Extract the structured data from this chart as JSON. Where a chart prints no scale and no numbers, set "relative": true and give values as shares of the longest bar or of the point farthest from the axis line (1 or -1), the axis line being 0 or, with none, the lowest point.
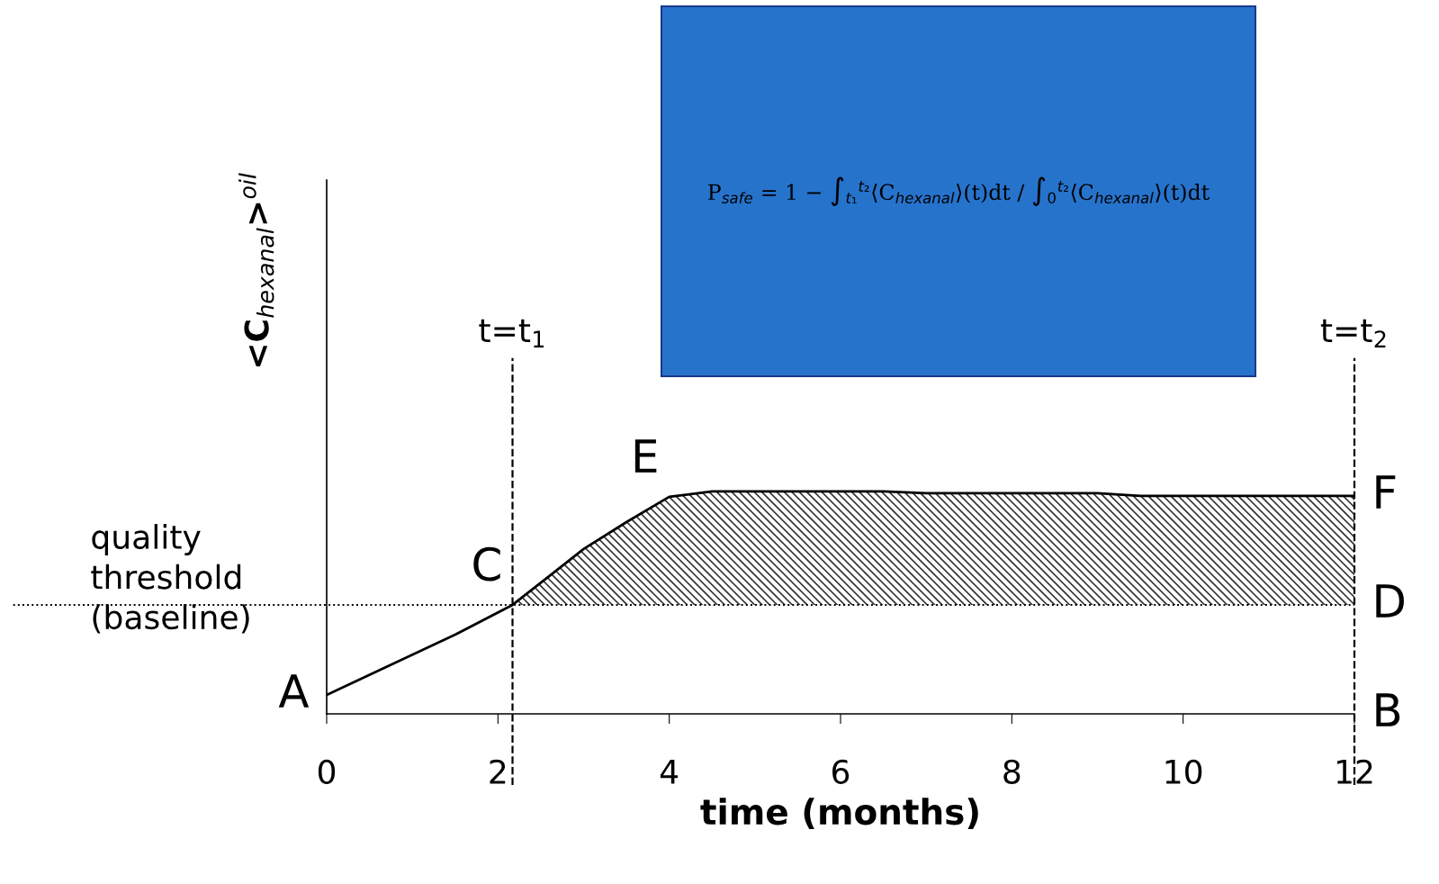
{
  "chart_data": {
    "type": "line",
    "relative": true,
    "xlabel": "time (months)",
    "ylabel": "<C$_{hexanal}$>$^{oil}$",
    "xlim": [
      0,
      12
    ],
    "xticks": [
      0,
      2,
      4,
      6,
      8,
      10,
      12
    ],
    "grid": false,
    "marker": "none",
    "line_style": "solid",
    "series": [
      {
        "color": "#000000",
        "x": [
          0,
          0.8,
          1.5,
          2.17,
          2.6,
          3.0,
          3.5,
          4.0,
          4.5,
          6.5,
          7.0,
          9.0,
          9.5,
          12
        ],
        "values": [
          0.085,
          0.23,
          0.356,
          0.49,
          0.62,
          0.741,
          0.862,
          0.976,
          1,
          1,
          0.992,
          0.992,
          0.98,
          0.98
        ],
        "lower": [
          null,
          null,
          null,
          0.49,
          0.49,
          0.49,
          0.49,
          0.49,
          0.49,
          0.49,
          0.49,
          0.49,
          0.49,
          0.49
        ],
        "upper": [
          null,
          null,
          null,
          0.49,
          0.62,
          0.741,
          0.862,
          0.976,
          1,
          1,
          0.992,
          0.992,
          0.98,
          0.98
        ]
      }
    ],
    "ref_lines": [
      {
        "axis": "y",
        "value": 0.49,
        "label": "quality threshold (baseline)",
        "line_style": "dotted"
      },
      {
        "axis": "x",
        "value": 2.17,
        "label": "t=t$_{1}$",
        "line_style": "dashed"
      },
      {
        "axis": "x",
        "value": 12,
        "label": "t=t$_{2}$",
        "line_style": "dashed"
      }
    ],
    "annotations": [
      {
        "text": "A",
        "x": 0,
        "y": 0.085
      },
      {
        "text": "C",
        "x": 2.17,
        "y": 0.49
      },
      {
        "text": "E",
        "x": 4,
        "y": 0.976
      },
      {
        "text": "F",
        "x": 12,
        "y": 0.98
      },
      {
        "text": "D",
        "x": 12,
        "y": 0.49
      },
      {
        "text": "B",
        "x": 12,
        "y": 0
      },
      "P$_{safe}$ = 1 − ∫$_{t₁}$$^{t₂}$⟨C$_{hexanal}$⟩(t)dt / ∫$_{0}$$^{t₂}$⟨C$_{hexanal}$⟩(t)dt"
    ]
  }
}
